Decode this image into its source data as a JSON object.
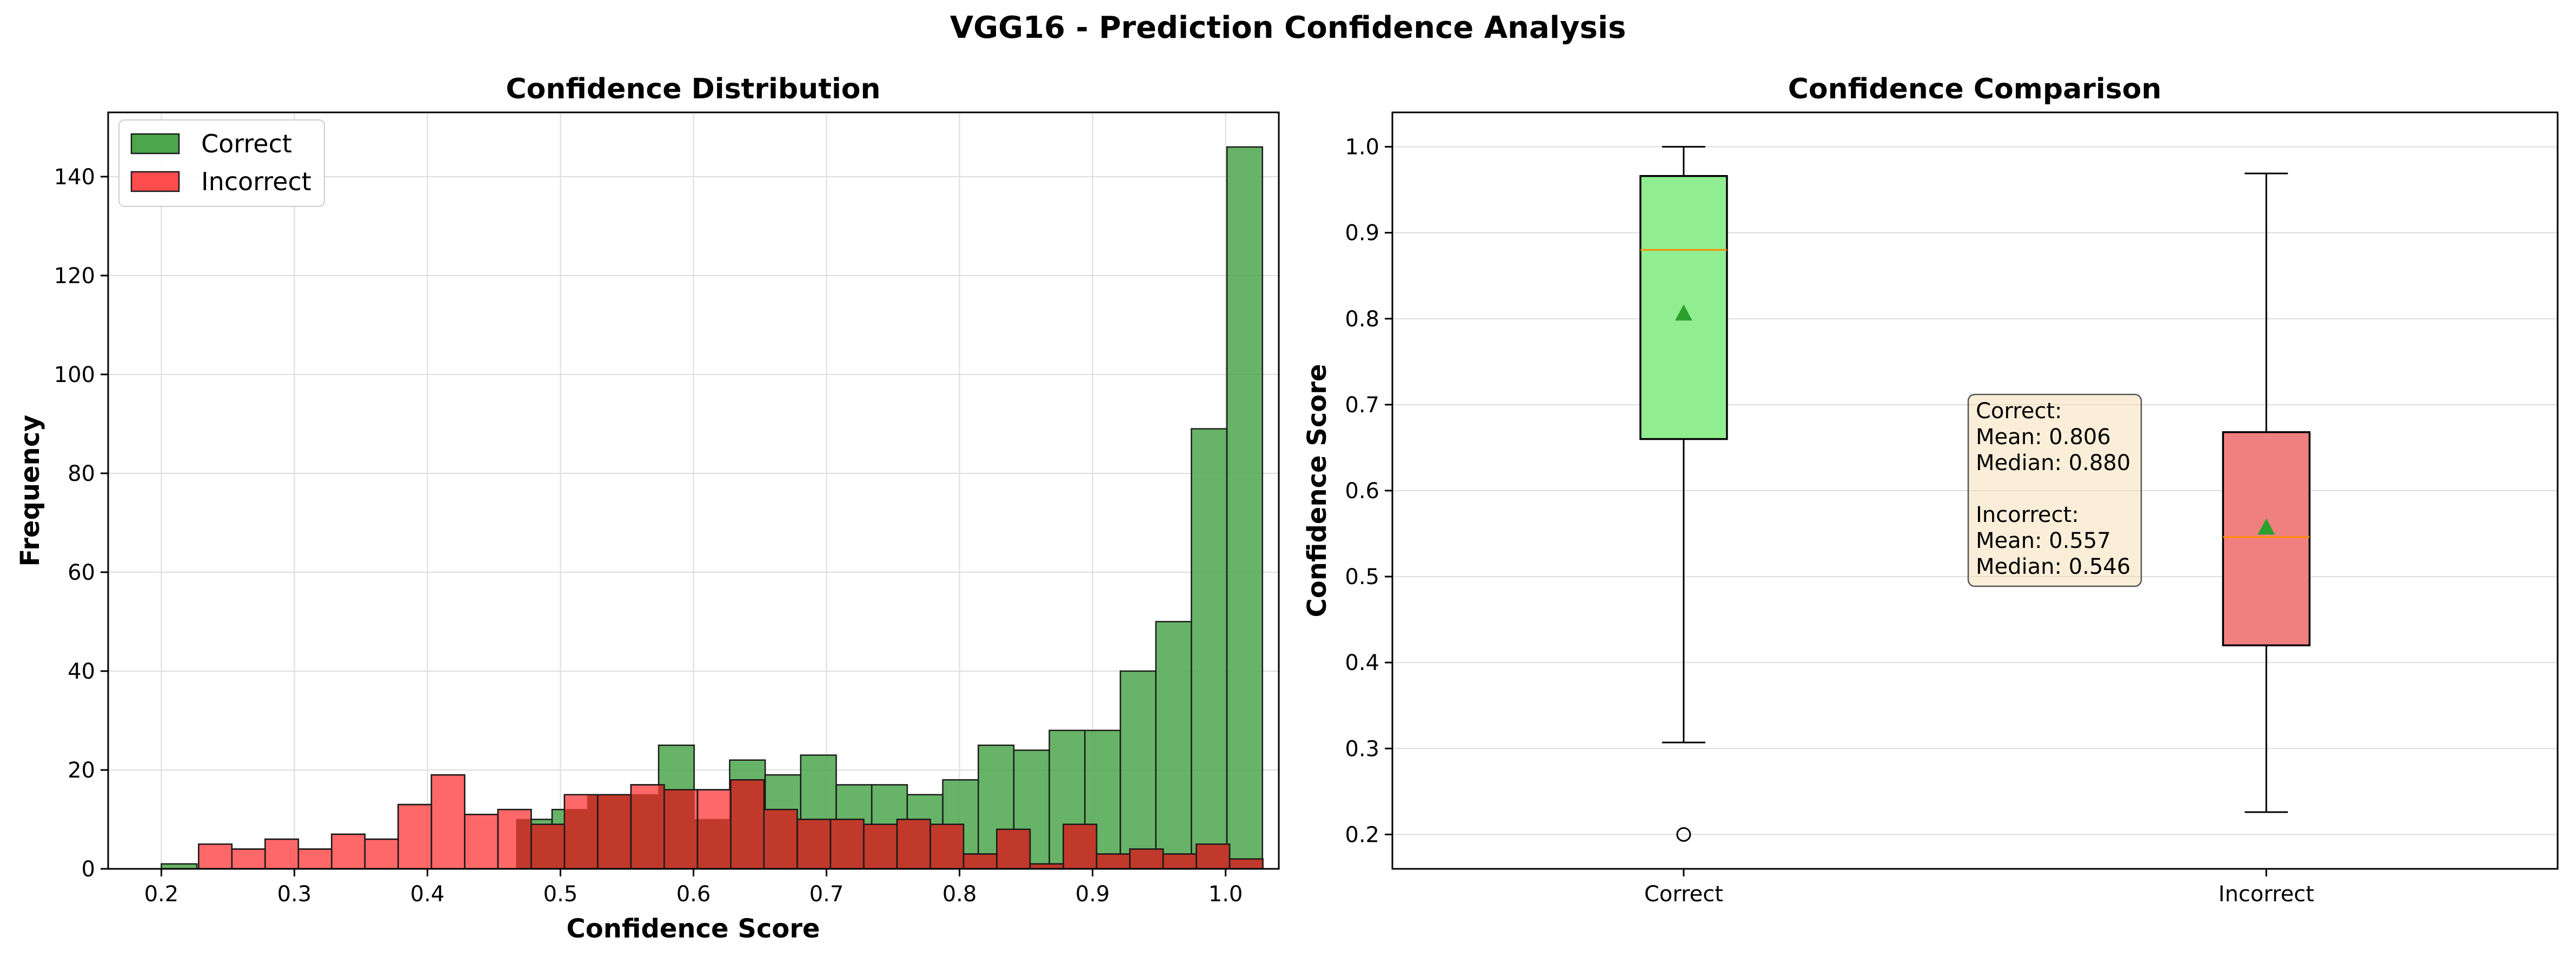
{
  "title": "VGG16 - Prediction Confidence Analysis",
  "colors": {
    "correct_hist": "#4ca64c",
    "incorrect_hist": "#ff4d4d",
    "overlap_hist": "#c0392b",
    "correct_box": "#90ee90",
    "incorrect_box": "#f08080",
    "median_line": "#ff8c00",
    "mean_marker": "#2ca02c"
  },
  "chart_data": [
    {
      "type": "histogram",
      "title": "Confidence Distribution",
      "xlabel": "Confidence Score",
      "ylabel": "Frequency",
      "xlim": [
        0.16,
        1.04
      ],
      "ylim": [
        0,
        153
      ],
      "xticks": [
        "0.2",
        "0.3",
        "0.4",
        "0.5",
        "0.6",
        "0.7",
        "0.8",
        "0.9",
        "1.0"
      ],
      "yticks": [
        "0",
        "20",
        "40",
        "60",
        "80",
        "100",
        "120",
        "140"
      ],
      "grid": true,
      "legend": "upper-left",
      "series": [
        {
          "name": "Correct",
          "bin_start": 0.2,
          "bin_width": 0.0267,
          "values": [
            1,
            0,
            0,
            0,
            0,
            0,
            0,
            0,
            0,
            0,
            10,
            12,
            15,
            15,
            25,
            10,
            22,
            19,
            23,
            17,
            17,
            15,
            18,
            25,
            24,
            28,
            28,
            40,
            50,
            89,
            146
          ]
        },
        {
          "name": "Incorrect",
          "bin_start": 0.228,
          "bin_width": 0.025,
          "values": [
            5,
            4,
            6,
            4,
            7,
            6,
            13,
            19,
            11,
            12,
            9,
            15,
            15,
            17,
            16,
            16,
            18,
            12,
            10,
            10,
            9,
            10,
            9,
            3,
            8,
            1,
            9,
            3,
            4,
            3,
            5,
            2
          ]
        }
      ]
    },
    {
      "type": "box",
      "title": "Confidence Comparison",
      "ylabel": "Confidence Score",
      "categories": [
        "Correct",
        "Incorrect"
      ],
      "ylim": [
        0.16,
        1.04
      ],
      "yticks": [
        "0.2",
        "0.3",
        "0.4",
        "0.5",
        "0.6",
        "0.7",
        "0.8",
        "0.9",
        "1.0"
      ],
      "grid": true,
      "boxes": [
        {
          "name": "Correct",
          "whisker_low": 0.307,
          "q1": 0.66,
          "median": 0.88,
          "q3": 0.966,
          "whisker_high": 1.0,
          "mean": 0.806,
          "outliers": [
            0.2
          ]
        },
        {
          "name": "Incorrect",
          "whisker_low": 0.226,
          "q1": 0.42,
          "median": 0.546,
          "q3": 0.668,
          "whisker_high": 0.969,
          "mean": 0.557,
          "outliers": []
        }
      ],
      "annotation": [
        "Correct:",
        "Mean: 0.806",
        "Median: 0.880",
        "",
        "Incorrect:",
        "Mean: 0.557",
        "Median: 0.546"
      ]
    }
  ]
}
